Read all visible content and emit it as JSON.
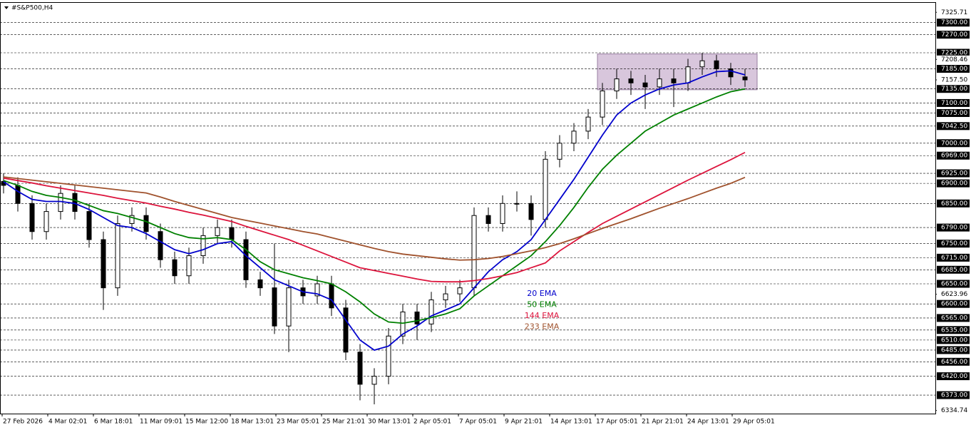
{
  "chart_data": {
    "type": "candlestick",
    "title": "#S&P500,H4",
    "x_labels": [
      "27 Feb 2026",
      "4 Mar 02:01",
      "6 Mar 18:01",
      "11 Mar 09:01",
      "15 Mar 12:00",
      "18 Mar 13:01",
      "23 Mar 05:01",
      "25 Mar 21:01",
      "30 Mar 13:01",
      "2 Apr 05:01",
      "7 Apr 05:01",
      "9 Apr 21:01",
      "14 Apr 13:01",
      "17 Apr 05:01",
      "21 Apr 21:01",
      "24 Apr 13:01",
      "29 Apr 05:01"
    ],
    "open": [
      6905,
      6895,
      6850,
      6780,
      6830,
      6875,
      6830,
      6760,
      6640,
      6800,
      6820,
      6780,
      6710,
      6670,
      6720,
      6770,
      6790,
      6760,
      6660,
      6640,
      6545,
      6640,
      6620,
      6650,
      6590,
      6480,
      6400,
      6420,
      6520,
      6580,
      6550,
      6610,
      6625,
      6640,
      6820,
      6800,
      6850,
      6850,
      6810,
      6960,
      7000,
      7030,
      7065,
      7130,
      7160,
      7150,
      7140,
      7160,
      7150,
      7190,
      7205,
      7185,
      7165
    ],
    "high": [
      6925,
      6915,
      6870,
      6850,
      6895,
      6895,
      6850,
      6780,
      6820,
      6840,
      6840,
      6800,
      6730,
      6740,
      6790,
      6810,
      6810,
      6780,
      6680,
      6750,
      6660,
      6660,
      6670,
      6670,
      6610,
      6500,
      6440,
      6540,
      6600,
      6600,
      6630,
      6645,
      6660,
      6840,
      6840,
      6870,
      6880,
      6870,
      6980,
      7020,
      7050,
      7085,
      7150,
      7185,
      7180,
      7170,
      7185,
      7185,
      7210,
      7225,
      7220,
      7200,
      7185
    ],
    "low": [
      6875,
      6830,
      6760,
      6760,
      6810,
      6810,
      6740,
      6585,
      6620,
      6780,
      6760,
      6690,
      6650,
      6650,
      6700,
      6750,
      6740,
      6640,
      6620,
      6525,
      6480,
      6600,
      6600,
      6570,
      6460,
      6360,
      6350,
      6400,
      6500,
      6510,
      6530,
      6590,
      6605,
      6620,
      6780,
      6780,
      6830,
      6770,
      6790,
      6940,
      6980,
      7010,
      7045,
      7110,
      7120,
      7085,
      7120,
      7090,
      7130,
      7170,
      7165,
      7145,
      7140
    ],
    "close": [
      6895,
      6850,
      6780,
      6830,
      6875,
      6830,
      6760,
      6640,
      6800,
      6820,
      6780,
      6710,
      6670,
      6720,
      6770,
      6790,
      6760,
      6660,
      6640,
      6545,
      6640,
      6620,
      6650,
      6590,
      6480,
      6400,
      6420,
      6520,
      6580,
      6550,
      6610,
      6625,
      6640,
      6820,
      6800,
      6850,
      6850,
      6810,
      6960,
      7000,
      7030,
      7065,
      7130,
      7160,
      7150,
      7140,
      7160,
      7150,
      7190,
      7205,
      7185,
      7165,
      7157.5
    ],
    "series": [
      {
        "name": "20 EMA",
        "color": "#0000cc",
        "values": [
          6904,
          6880,
          6860,
          6855,
          6855,
          6850,
          6835,
          6815,
          6795,
          6790,
          6775,
          6755,
          6735,
          6725,
          6735,
          6750,
          6755,
          6720,
          6690,
          6660,
          6645,
          6630,
          6625,
          6610,
          6560,
          6510,
          6485,
          6495,
          6525,
          6545,
          6570,
          6585,
          6600,
          6640,
          6680,
          6710,
          6730,
          6760,
          6810,
          6860,
          6910,
          6965,
          7020,
          7070,
          7100,
          7120,
          7135,
          7145,
          7150,
          7165,
          7178,
          7180,
          7170
        ]
      },
      {
        "name": "50 EMA",
        "color": "#008000",
        "values": [
          6907,
          6895,
          6880,
          6870,
          6865,
          6858,
          6845,
          6832,
          6825,
          6815,
          6805,
          6790,
          6775,
          6765,
          6762,
          6765,
          6760,
          6735,
          6705,
          6685,
          6675,
          6665,
          6658,
          6650,
          6630,
          6605,
          6575,
          6555,
          6552,
          6558,
          6566,
          6575,
          6588,
          6620,
          6645,
          6670,
          6695,
          6720,
          6755,
          6795,
          6840,
          6890,
          6935,
          6970,
          7000,
          7030,
          7050,
          7070,
          7085,
          7100,
          7115,
          7128,
          7135
        ]
      },
      {
        "name": "144 EMA",
        "color": "#dc143c",
        "values": [
          6913,
          6907,
          6901,
          6894,
          6888,
          6882,
          6876,
          6870,
          6863,
          6857,
          6851,
          6843,
          6836,
          6828,
          6821,
          6813,
          6805,
          6793,
          6782,
          6771,
          6760,
          6746,
          6732,
          6718,
          6704,
          6690,
          6683,
          6676,
          6669,
          6662,
          6656,
          6655,
          6655,
          6658,
          6663,
          6670,
          6678,
          6690,
          6702,
          6732,
          6755,
          6778,
          6800,
          6818,
          6836,
          6854,
          6872,
          6890,
          6908,
          6925,
          6942,
          6959,
          6977
        ]
      },
      {
        "name": "233 EMA",
        "color": "#a0522d",
        "values": [
          6916,
          6912,
          6908,
          6904,
          6900,
          6896,
          6892,
          6888,
          6884,
          6880,
          6876,
          6866,
          6855,
          6845,
          6835,
          6825,
          6815,
          6808,
          6801,
          6794,
          6787,
          6780,
          6774,
          6765,
          6756,
          6747,
          6738,
          6730,
          6724,
          6720,
          6716,
          6712,
          6709,
          6710,
          6713,
          6718,
          6725,
          6732,
          6740,
          6750,
          6762,
          6775,
          6788,
          6800,
          6812,
          6825,
          6838,
          6850,
          6862,
          6875,
          6888,
          6900,
          6915
        ]
      }
    ],
    "ylim": [
      6327,
      7351
    ],
    "yticks": [
      7325.71,
      7208.46,
      {
        "value": 7157.5,
        "label": "7157.50"
      },
      6623.96,
      6334.74
    ],
    "levels": [
      {
        "value": 7300,
        "label": "7300.00"
      },
      {
        "value": 7270,
        "label": "7270.00"
      },
      {
        "value": 7225,
        "label": "7225.00"
      },
      {
        "value": 7185,
        "label": "7185.00"
      },
      {
        "value": 7135,
        "label": "7135.00"
      },
      {
        "value": 7100,
        "label": "7100.00"
      },
      {
        "value": 7075,
        "label": "7075.00"
      },
      {
        "value": 7042.5,
        "label": "7042.50"
      },
      {
        "value": 7000,
        "label": "7000.00"
      },
      {
        "value": 6969,
        "label": "6969.00"
      },
      {
        "value": 6925,
        "label": "6925.00"
      },
      {
        "value": 6900,
        "label": "6900.00"
      },
      {
        "value": 6850,
        "label": "6850.00"
      },
      {
        "value": 6790,
        "label": "6790.00"
      },
      {
        "value": 6750,
        "label": "6750.00"
      },
      {
        "value": 6715,
        "label": "6715.00"
      },
      {
        "value": 6685,
        "label": "6685.00"
      },
      {
        "value": 6650,
        "label": "6650.00"
      },
      {
        "value": 6600,
        "label": "6600.00"
      },
      {
        "value": 6565,
        "label": "6565.00"
      },
      {
        "value": 6535,
        "label": "6535.00"
      },
      {
        "value": 6510,
        "label": "6510.00"
      },
      {
        "value": 6485,
        "label": "6485.00"
      },
      {
        "value": 6456,
        "label": "6456.00"
      },
      {
        "value": 6420,
        "label": "6420.00"
      },
      {
        "value": 6373,
        "label": "6373.00"
      }
    ],
    "range_box": [
      7133,
      7222
    ]
  }
}
